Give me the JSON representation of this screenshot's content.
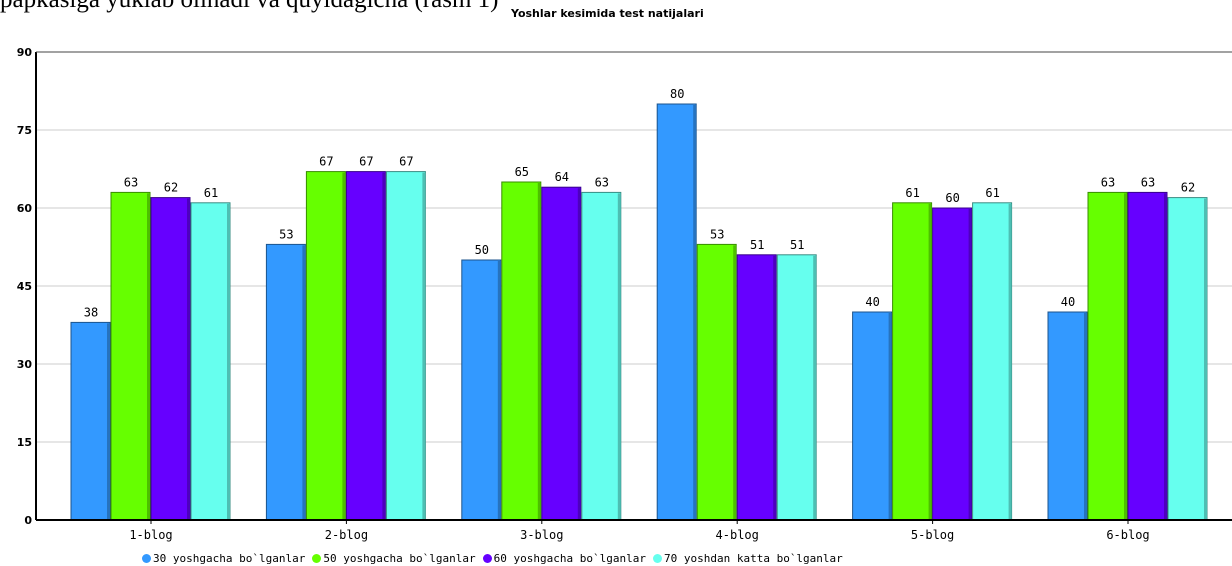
{
  "header_text": "papkasiga yuklab olinadi va quyidagicha (rasm 1)",
  "chart_data": {
    "type": "bar",
    "title": "Yoshlar kesimida test natijalari",
    "categories": [
      "1-blog",
      "2-blog",
      "3-blog",
      "4-blog",
      "5-blog",
      "6-blog"
    ],
    "series": [
      {
        "name": "30 yoshgacha bo`lganlar",
        "color": "#3399ff",
        "values": [
          38,
          53,
          50,
          80,
          40,
          40
        ]
      },
      {
        "name": "50 yoshgacha bo`lganlar",
        "color": "#66ff00",
        "values": [
          63,
          67,
          65,
          53,
          61,
          63
        ]
      },
      {
        "name": "60 yoshgacha bo`lganlar",
        "color": "#6600ff",
        "values": [
          62,
          67,
          64,
          51,
          60,
          63
        ]
      },
      {
        "name": "70 yoshdan katta bo`lganlar",
        "color": "#66ffee",
        "values": [
          61,
          67,
          63,
          51,
          61,
          62
        ]
      }
    ],
    "ylim": [
      0,
      90
    ],
    "yticks": [
      0,
      15,
      30,
      45,
      60,
      75,
      90
    ],
    "grid": true,
    "legend_position": "bottom"
  }
}
